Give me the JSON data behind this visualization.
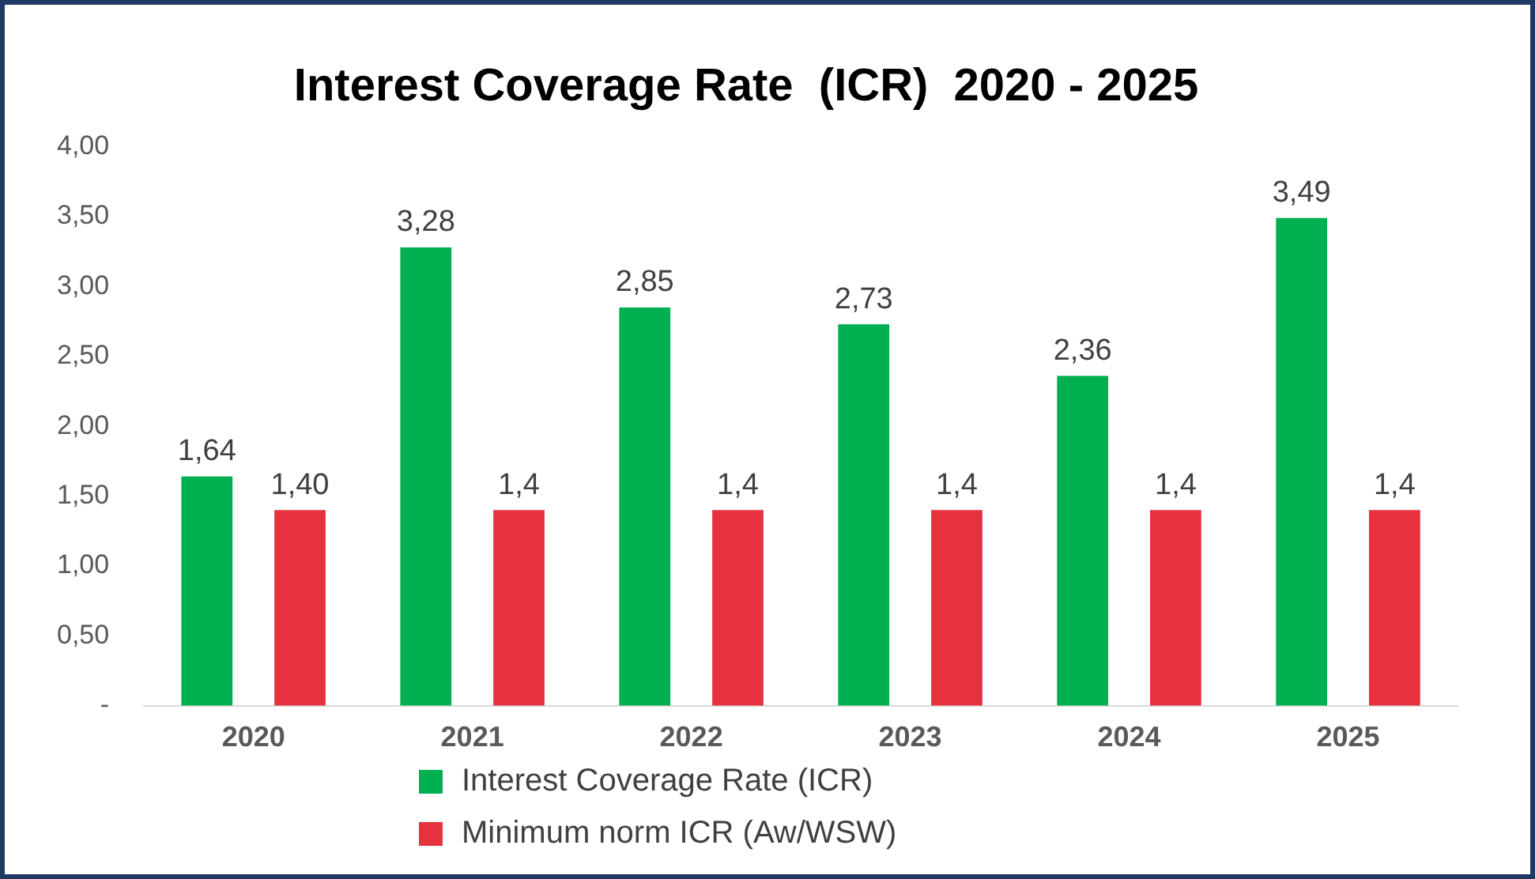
{
  "chart_data": {
    "type": "bar",
    "title": "Interest Coverage Rate  (ICR)  2020 - 2025",
    "categories": [
      "2020",
      "2021",
      "2022",
      "2023",
      "2024",
      "2025"
    ],
    "series": [
      {
        "name": "Interest Coverage Rate (ICR)",
        "color": "#00b050",
        "values": [
          1.64,
          3.28,
          2.85,
          2.73,
          2.36,
          3.49
        ],
        "value_labels": [
          "1,64",
          "3,28",
          "2,85",
          "2,73",
          "2,36",
          "3,49"
        ]
      },
      {
        "name": "Minimum norm ICR (Aw/WSW)",
        "color": "#e5323e",
        "values": [
          1.4,
          1.4,
          1.4,
          1.4,
          1.4,
          1.4
        ],
        "value_labels": [
          "1,40",
          "1,4",
          "1,4",
          "1,4",
          "1,4",
          "1,4"
        ]
      }
    ],
    "ylim": [
      0,
      4
    ],
    "yticks": [
      {
        "value": 0,
        "label": "-"
      },
      {
        "value": 0.5,
        "label": "0,50"
      },
      {
        "value": 1,
        "label": "1,00"
      },
      {
        "value": 1.5,
        "label": "1,50"
      },
      {
        "value": 2,
        "label": "2,00"
      },
      {
        "value": 2.5,
        "label": "2,50"
      },
      {
        "value": 3,
        "label": "3,00"
      },
      {
        "value": 3.5,
        "label": "3,50"
      },
      {
        "value": 4,
        "label": "4,00"
      }
    ],
    "grid": false,
    "legend": "bottom"
  }
}
